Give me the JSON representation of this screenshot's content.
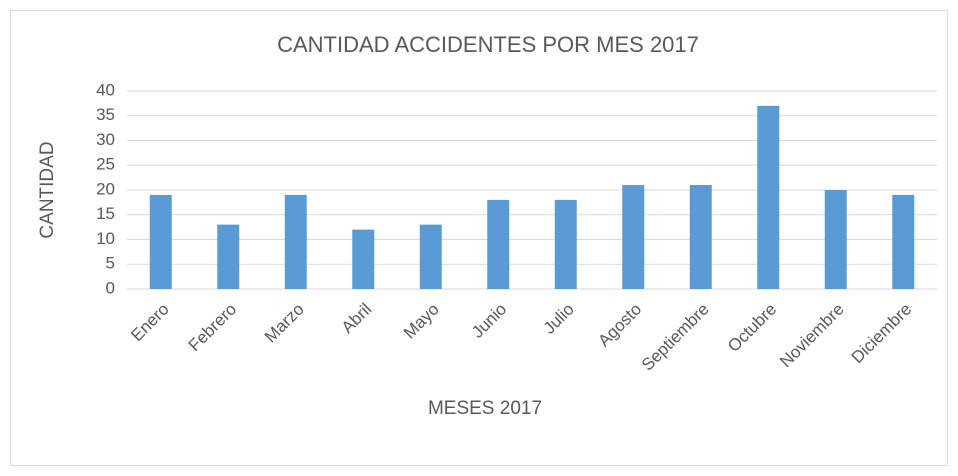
{
  "chart_data": {
    "type": "bar",
    "title": "CANTIDAD ACCIDENTES POR MES 2017",
    "x_label": "MESES 2017",
    "y_label": "CANTIDAD",
    "categories": [
      "Enero",
      "Febrero",
      "Marzo",
      "Abril",
      "Mayo",
      "Junio",
      "Julio",
      "Agosto",
      "Septiembre",
      "Octubre",
      "Noviembre",
      "Diciembre"
    ],
    "values": [
      19,
      13,
      19,
      12,
      13,
      18,
      18,
      21,
      21,
      37,
      20,
      19
    ],
    "color": "#5b9bd5",
    "ylim": [
      0,
      40
    ],
    "yticks": [
      0,
      5,
      10,
      15,
      20,
      25,
      30,
      35,
      40
    ],
    "grid": true
  }
}
